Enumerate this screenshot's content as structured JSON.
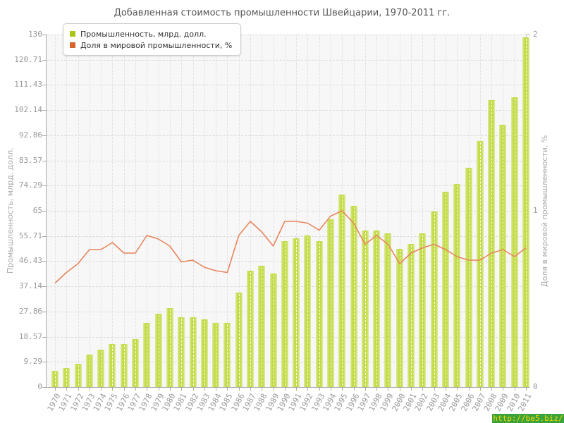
{
  "title": "Добавленная стоимость промышленности Швейцарии, 1970-2011 гг.",
  "legend": [
    {
      "label": "Промышленность, млрд. долл.",
      "color": "#a9c616"
    },
    {
      "label": "Доля в мировой промышленности, %",
      "color": "#d4662a"
    }
  ],
  "watermark": {
    "text": "http://be5.biz/",
    "bg": "#3aa33a",
    "fg": "#ffd800"
  },
  "colors": {
    "bar_fill": "#c4db47",
    "bar_edge": "#dcec9e",
    "line": "#e8855c",
    "plot_bg": "#f7f7f7",
    "grid": "#d9d9d9",
    "axis": "#a9a9a9",
    "tick_text": "#999999",
    "title_text": "#555555"
  },
  "chart_data": {
    "type": "bar",
    "title": "Добавленная стоимость промышленности Швейцарии, 1970-2011 гг.",
    "categories": [
      "1970",
      "1971",
      "1972",
      "1973",
      "1974",
      "1975",
      "1976",
      "1977",
      "1978",
      "1979",
      "1980",
      "1981",
      "1982",
      "1983",
      "1984",
      "1985",
      "1986",
      "1987",
      "1988",
      "1989",
      "1990",
      "1991",
      "1992",
      "1993",
      "1994",
      "1995",
      "1996",
      "1997",
      "1998",
      "1999",
      "2000",
      "2001",
      "2002",
      "2003",
      "2004",
      "2005",
      "2006",
      "2007",
      "2008",
      "2009",
      "2010",
      "2011"
    ],
    "series": [
      {
        "name": "Промышленность, млрд. долл.",
        "type": "bar",
        "axis": "left",
        "color": "#c4db47",
        "values": [
          6.0,
          7.0,
          8.6,
          11.9,
          13.7,
          15.8,
          15.8,
          17.8,
          23.7,
          27.0,
          29.0,
          25.7,
          25.7,
          24.9,
          23.7,
          23.7,
          34.8,
          42.8,
          44.8,
          41.9,
          53.9,
          54.9,
          55.9,
          53.9,
          61.9,
          71.0,
          66.9,
          57.8,
          57.8,
          56.8,
          50.9,
          52.8,
          56.8,
          64.7,
          71.9,
          74.9,
          80.9,
          90.7,
          105.7,
          96.8,
          106.9,
          128.9
        ]
      },
      {
        "name": "Доля в мировой промышленности, %",
        "type": "line",
        "axis": "right",
        "color": "#e8855c",
        "values": [
          0.59,
          0.65,
          0.7,
          0.78,
          0.78,
          0.82,
          0.76,
          0.76,
          0.86,
          0.84,
          0.8,
          0.71,
          0.72,
          0.68,
          0.66,
          0.65,
          0.86,
          0.94,
          0.88,
          0.8,
          0.94,
          0.94,
          0.93,
          0.89,
          0.97,
          1.0,
          0.93,
          0.81,
          0.86,
          0.81,
          0.7,
          0.76,
          0.79,
          0.81,
          0.78,
          0.74,
          0.72,
          0.72,
          0.76,
          0.78,
          0.74,
          0.79
        ]
      }
    ],
    "left_axis": {
      "label": "Промышленность, млрд. долл.",
      "range": [
        0,
        130
      ],
      "ticks": [
        "0",
        "9.29",
        "18.57",
        "27.86",
        "37.14",
        "46.43",
        "55.71",
        "65",
        "74.29",
        "83.57",
        "92.86",
        "102.14",
        "111.43",
        "120.71",
        "130"
      ]
    },
    "right_axis": {
      "label": "Доля в мировой промышленности, %",
      "range": [
        0,
        2
      ],
      "ticks": [
        "0",
        "1",
        "2"
      ]
    },
    "grid": true,
    "legend_position": "top-left"
  }
}
